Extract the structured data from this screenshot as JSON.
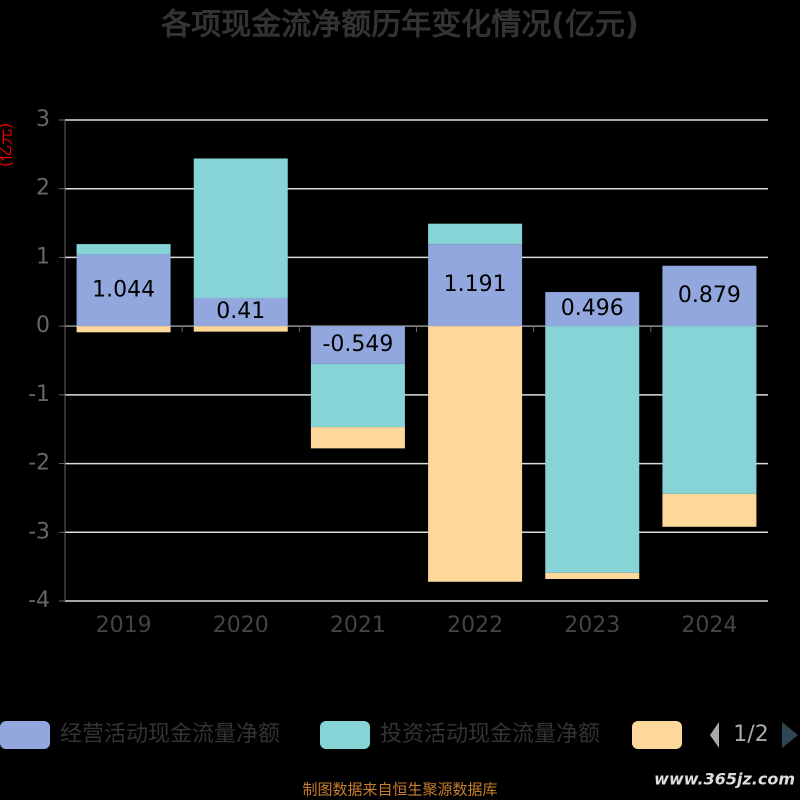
{
  "chart_data": {
    "type": "bar",
    "stacked": true,
    "title": "各项现金流净额历年变化情况(亿元)",
    "y_label": "(亿元)",
    "categories": [
      "2019",
      "2020",
      "2021",
      "2022",
      "2023",
      "2024"
    ],
    "series": [
      {
        "name": "经营活动现金流量净额",
        "color": "#91a7dd",
        "values": [
          1.044,
          0.41,
          -0.549,
          1.191,
          0.496,
          0.879
        ],
        "show_labels": true
      },
      {
        "name": "投资活动现金流量净额",
        "color": "#86d4d6",
        "values": [
          0.15,
          2.03,
          -0.92,
          0.3,
          -3.59,
          -2.44
        ]
      },
      {
        "color": "#fdd89a",
        "values": [
          -0.09,
          -0.08,
          -0.31,
          -3.72,
          -0.09,
          -0.48
        ]
      }
    ],
    "ylim": [
      -4,
      3
    ],
    "yticks": [
      -4,
      -3,
      -2,
      -1,
      0,
      1,
      2,
      3
    ],
    "grid": true,
    "legend_page": "1/2",
    "footer": "制图数据来自恒生聚源数据库",
    "watermark": "www.365jz.com"
  }
}
